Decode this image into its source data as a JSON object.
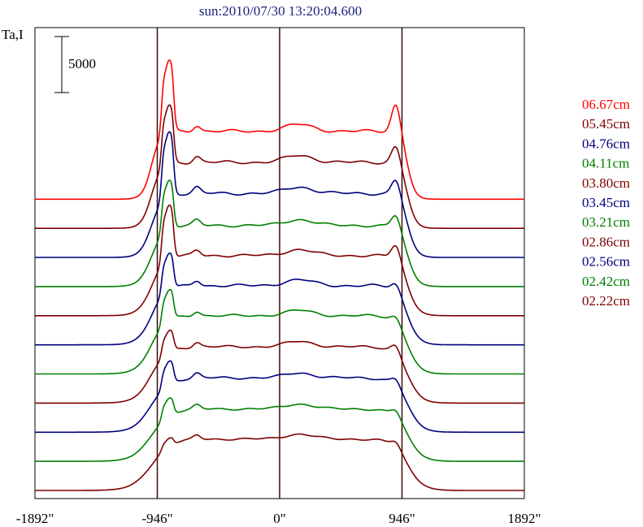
{
  "chart_data": {
    "type": "line",
    "title": "sun:2010/07/30 13:20:04.600",
    "ylabel": "Ta,I",
    "xlabel": "",
    "xlim": [
      -1892,
      1892
    ],
    "x_ticks": [
      {
        "value": -1892,
        "label": "-1892\""
      },
      {
        "value": -946,
        "label": "-946\""
      },
      {
        "value": 0,
        "label": "0\""
      },
      {
        "value": 946,
        "label": "946\""
      },
      {
        "value": 1892,
        "label": "1892\""
      }
    ],
    "vertical_markers": [
      -946,
      0,
      946
    ],
    "grid": false,
    "legend_position": "right",
    "scale_bar": {
      "value": 5000,
      "label": "5000"
    },
    "offset_step": 3000,
    "y_max": 46000,
    "series": [
      {
        "name": "06.67cm",
        "color": "#ff0000",
        "baseline": 30000,
        "quiet": 7000,
        "lpeak": 14000,
        "rpeak": 10000,
        "center": 700,
        "wave": 500
      },
      {
        "name": "05.45cm",
        "color": "#7f0000",
        "baseline": 27000,
        "quiet": 6800,
        "lpeak": 12500,
        "rpeak": 8800,
        "center": 700,
        "wave": 500
      },
      {
        "name": "04.76cm",
        "color": "#00007f",
        "baseline": 24000,
        "quiet": 6600,
        "lpeak": 12800,
        "rpeak": 8400,
        "center": 650,
        "wave": 500
      },
      {
        "name": "04.11cm",
        "color": "#007f00",
        "baseline": 21000,
        "quiet": 6300,
        "lpeak": 11000,
        "rpeak": 7800,
        "center": 600,
        "wave": 450
      },
      {
        "name": "03.80cm",
        "color": "#7f0000",
        "baseline": 18000,
        "quiet": 6200,
        "lpeak": 11500,
        "rpeak": 7800,
        "center": 600,
        "wave": 450
      },
      {
        "name": "03.45cm",
        "color": "#00007f",
        "baseline": 15000,
        "quiet": 6100,
        "lpeak": 9700,
        "rpeak": 6900,
        "center": 600,
        "wave": 450
      },
      {
        "name": "03.21cm",
        "color": "#007f00",
        "baseline": 12000,
        "quiet": 6000,
        "lpeak": 9000,
        "rpeak": 6600,
        "center": 550,
        "wave": 400
      },
      {
        "name": "02.86cm",
        "color": "#7f0000",
        "baseline": 9000,
        "quiet": 5800,
        "lpeak": 7900,
        "rpeak": 6700,
        "center": 550,
        "wave": 400
      },
      {
        "name": "02.56cm",
        "color": "#00007f",
        "baseline": 6000,
        "quiet": 5600,
        "lpeak": 7800,
        "rpeak": 6300,
        "center": 500,
        "wave": 400
      },
      {
        "name": "02.42cm",
        "color": "#007f00",
        "baseline": 3000,
        "quiet": 5400,
        "lpeak": 7100,
        "rpeak": 6100,
        "center": 500,
        "wave": 350
      },
      {
        "name": "02.22cm",
        "color": "#7f0000",
        "baseline": 0,
        "quiet": 5300,
        "lpeak": 6100,
        "rpeak": 5900,
        "center": 500,
        "wave": 350
      }
    ]
  }
}
